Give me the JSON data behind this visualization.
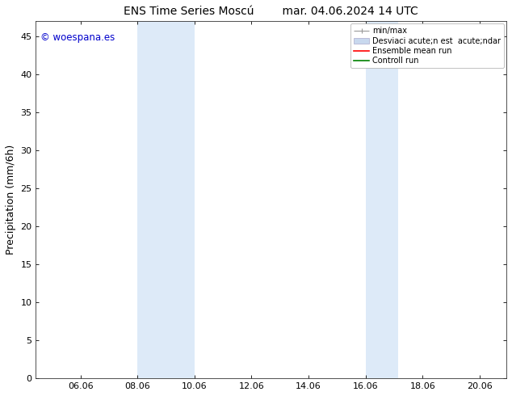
{
  "title": "ENS Time Series Moscú        mar. 04.06.2024 14 UTC",
  "ylabel": "Precipitation (mm/6h)",
  "watermark": "© woespana.es",
  "watermark_color": "#0000cc",
  "xlim_left": 4.5,
  "xlim_right": 21.0,
  "ylim_bottom": 0,
  "ylim_top": 47,
  "xticks": [
    6.06,
    8.06,
    10.06,
    12.06,
    14.06,
    16.06,
    18.06,
    20.06
  ],
  "xtick_labels": [
    "06.06",
    "08.06",
    "10.06",
    "12.06",
    "14.06",
    "16.06",
    "18.06",
    "20.06"
  ],
  "yticks": [
    0,
    5,
    10,
    15,
    20,
    25,
    30,
    35,
    40,
    45
  ],
  "shaded_regions": [
    {
      "x_start": 8.06,
      "x_end": 10.06
    },
    {
      "x_start": 16.06,
      "x_end": 17.2
    }
  ],
  "shaded_color": "#ddeaf8",
  "legend_labels": [
    "min/max",
    "Desviaci acute;n est  acute;ndar",
    "Ensemble mean run",
    "Controll run"
  ],
  "legend_colors_line": [
    "#999999",
    "#c8d8ee",
    "#ff0000",
    "#008000"
  ],
  "background_color": "#ffffff",
  "font_size_title": 10,
  "font_size_ticks": 8,
  "font_size_ylabel": 9,
  "font_size_legend": 7,
  "font_size_watermark": 8.5
}
